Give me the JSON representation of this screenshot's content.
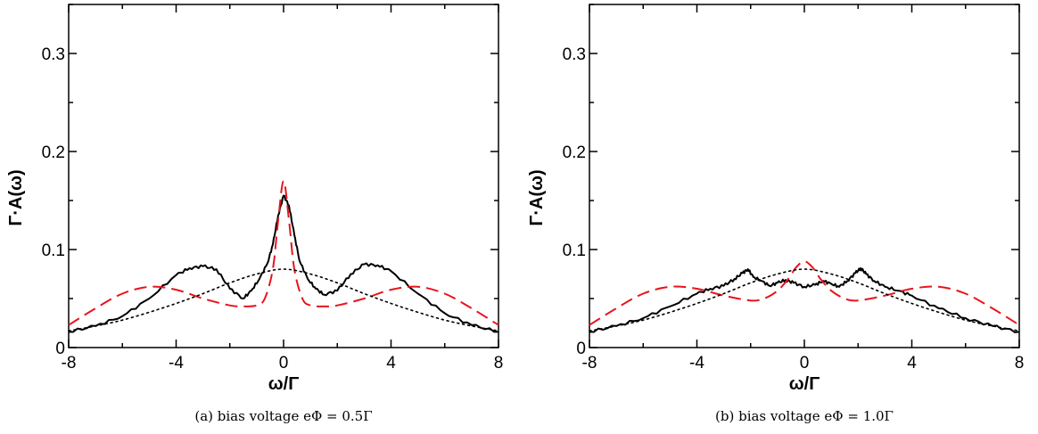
{
  "chart_data": [
    {
      "type": "line",
      "caption": "(a) bias voltage eΦ = 0.5Γ",
      "xlabel": "ω/Γ",
      "ylabel": "Γ·A(ω)",
      "xlim": [
        -8,
        8
      ],
      "ylim": [
        0,
        0.35
      ],
      "xticks": [
        -8,
        -4,
        0,
        4,
        8
      ],
      "xtick_labels": [
        "-8",
        "-4",
        "0",
        "4",
        "8"
      ],
      "yticks": [
        0,
        0.1,
        0.2,
        0.3
      ],
      "ytick_labels": [
        "0",
        "0.1",
        "0.2",
        "0.3"
      ],
      "grid": false,
      "series": [
        {
          "style": "solid",
          "color": "#000000",
          "x": [
            -8,
            -7,
            -6,
            -5,
            -4,
            -3.5,
            -3,
            -2.5,
            -2,
            -1.5,
            -1.2,
            -0.9,
            -0.6,
            -0.4,
            -0.2,
            0,
            0.2,
            0.4,
            0.6,
            0.9,
            1.2,
            1.5,
            2,
            2.5,
            3,
            3.5,
            4,
            5,
            6,
            7,
            8
          ],
          "y": [
            0.016,
            0.022,
            0.032,
            0.05,
            0.074,
            0.081,
            0.083,
            0.08,
            0.06,
            0.05,
            0.058,
            0.07,
            0.086,
            0.105,
            0.135,
            0.155,
            0.145,
            0.115,
            0.088,
            0.07,
            0.06,
            0.054,
            0.058,
            0.075,
            0.085,
            0.084,
            0.078,
            0.055,
            0.035,
            0.023,
            0.016
          ]
        },
        {
          "style": "dashed",
          "color": "#e8141c",
          "x": [
            -8,
            -7,
            -6,
            -5,
            -4,
            -3,
            -2,
            -1.5,
            -1,
            -0.7,
            -0.4,
            -0.2,
            0,
            0.2,
            0.4,
            0.7,
            1,
            1.5,
            2,
            3,
            4,
            5,
            6,
            7,
            8
          ],
          "y": [
            0.023,
            0.04,
            0.055,
            0.062,
            0.059,
            0.05,
            0.043,
            0.042,
            0.043,
            0.05,
            0.08,
            0.13,
            0.17,
            0.13,
            0.08,
            0.05,
            0.043,
            0.042,
            0.043,
            0.05,
            0.059,
            0.062,
            0.055,
            0.04,
            0.023
          ],
          "curve": "smooth"
        },
        {
          "style": "dotted",
          "color": "#000000",
          "x": [
            -8,
            -7,
            -6,
            -5,
            -4,
            -3,
            -2,
            -1,
            0,
            1,
            2,
            3,
            4,
            5,
            6,
            7,
            8
          ],
          "y": [
            0.017,
            0.022,
            0.028,
            0.036,
            0.045,
            0.055,
            0.066,
            0.075,
            0.08,
            0.075,
            0.066,
            0.055,
            0.045,
            0.036,
            0.028,
            0.022,
            0.017
          ],
          "curve": "smooth"
        }
      ]
    },
    {
      "type": "line",
      "caption": "(b) bias voltage eΦ = 1.0Γ",
      "xlabel": "ω/Γ",
      "ylabel": "Γ·A(ω)",
      "xlim": [
        -8,
        8
      ],
      "ylim": [
        0,
        0.35
      ],
      "xticks": [
        -8,
        -4,
        0,
        4,
        8
      ],
      "xtick_labels": [
        "-8",
        "-4",
        "0",
        "4",
        "8"
      ],
      "yticks": [
        0,
        0.1,
        0.2,
        0.3
      ],
      "ytick_labels": [
        "0",
        "0.1",
        "0.2",
        "0.3"
      ],
      "grid": false,
      "series": [
        {
          "style": "solid",
          "color": "#000000",
          "x": [
            -8,
            -7,
            -6,
            -5,
            -4,
            -3.5,
            -3,
            -2.6,
            -2.3,
            -2.1,
            -1.9,
            -1.6,
            -1.3,
            -1,
            -0.7,
            -0.4,
            0,
            0.4,
            0.7,
            1,
            1.3,
            1.6,
            1.9,
            2.1,
            2.3,
            2.6,
            3,
            3.5,
            4,
            5,
            6,
            7,
            8
          ],
          "y": [
            0.016,
            0.022,
            0.03,
            0.042,
            0.055,
            0.06,
            0.063,
            0.07,
            0.076,
            0.08,
            0.072,
            0.068,
            0.063,
            0.066,
            0.069,
            0.066,
            0.062,
            0.064,
            0.068,
            0.065,
            0.062,
            0.068,
            0.076,
            0.081,
            0.075,
            0.068,
            0.062,
            0.058,
            0.053,
            0.04,
            0.03,
            0.022,
            0.016
          ]
        },
        {
          "style": "dashed",
          "color": "#e8141c",
          "x": [
            -8,
            -7,
            -6,
            -5,
            -4,
            -3,
            -2,
            -1.5,
            -1,
            -0.6,
            -0.3,
            0,
            0.3,
            0.6,
            1,
            1.5,
            2,
            3,
            4,
            5,
            6,
            7,
            8
          ],
          "y": [
            0.023,
            0.04,
            0.055,
            0.062,
            0.06,
            0.053,
            0.048,
            0.05,
            0.058,
            0.07,
            0.082,
            0.088,
            0.082,
            0.07,
            0.058,
            0.05,
            0.048,
            0.053,
            0.06,
            0.062,
            0.055,
            0.04,
            0.023
          ],
          "curve": "smooth"
        },
        {
          "style": "dotted",
          "color": "#000000",
          "x": [
            -8,
            -7,
            -6,
            -5,
            -4,
            -3,
            -2,
            -1,
            0,
            1,
            2,
            3,
            4,
            5,
            6,
            7,
            8
          ],
          "y": [
            0.017,
            0.022,
            0.028,
            0.036,
            0.045,
            0.055,
            0.066,
            0.075,
            0.08,
            0.075,
            0.066,
            0.055,
            0.045,
            0.036,
            0.028,
            0.022,
            0.017
          ],
          "curve": "smooth"
        }
      ]
    }
  ]
}
